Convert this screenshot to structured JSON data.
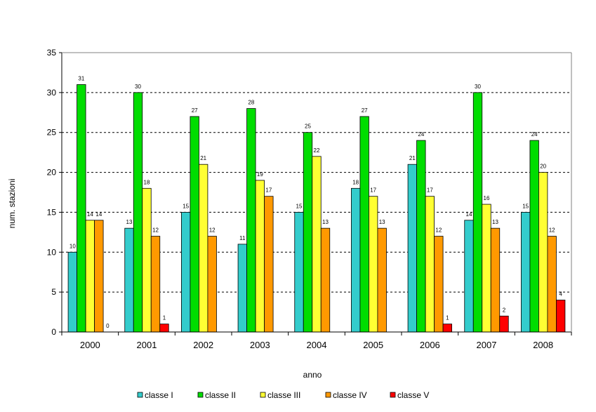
{
  "chart_data": {
    "type": "bar",
    "title": "",
    "xlabel": "anno",
    "ylabel": "num. stazioni",
    "ylim": [
      0,
      35
    ],
    "yticks": [
      0,
      5,
      10,
      15,
      20,
      25,
      30,
      35
    ],
    "grid": true,
    "legend_position": "bottom",
    "categories": [
      "2000",
      "2001",
      "2002",
      "2003",
      "2004",
      "2005",
      "2006",
      "2007",
      "2008"
    ],
    "series": [
      {
        "name": "classe I",
        "color": "#33CCCC",
        "values": [
          10,
          13,
          15,
          11,
          15,
          18,
          21,
          14,
          15
        ],
        "labels": [
          "10",
          "13",
          "15",
          "11",
          "15",
          "18",
          "21",
          "14",
          "15"
        ]
      },
      {
        "name": "classe II",
        "color": "#00DD00",
        "values": [
          31,
          30,
          27,
          28,
          25,
          27,
          24,
          30,
          24
        ],
        "labels": [
          "31",
          "30",
          "27",
          "28",
          "25",
          "27",
          "24",
          "30",
          "24"
        ]
      },
      {
        "name": "classe III",
        "color": "#FFFF33",
        "values": [
          14,
          18,
          21,
          19,
          22,
          17,
          17,
          16,
          20
        ],
        "labels": [
          "14",
          "18",
          "21",
          "19",
          "22",
          "17",
          "17",
          "16",
          "20"
        ]
      },
      {
        "name": "classe IV",
        "color": "#FF9900",
        "values": [
          14,
          12,
          12,
          17,
          13,
          13,
          12,
          13,
          12
        ],
        "labels": [
          "14",
          "12",
          "12",
          "17",
          "13",
          "13",
          "12",
          "13",
          "12"
        ]
      },
      {
        "name": "classe V",
        "color": "#FF0000",
        "values": [
          0,
          1,
          null,
          null,
          null,
          null,
          1,
          2,
          4
        ],
        "labels": [
          "0",
          "1",
          "",
          "",
          "",
          "",
          "1",
          "2",
          "4"
        ]
      }
    ]
  }
}
